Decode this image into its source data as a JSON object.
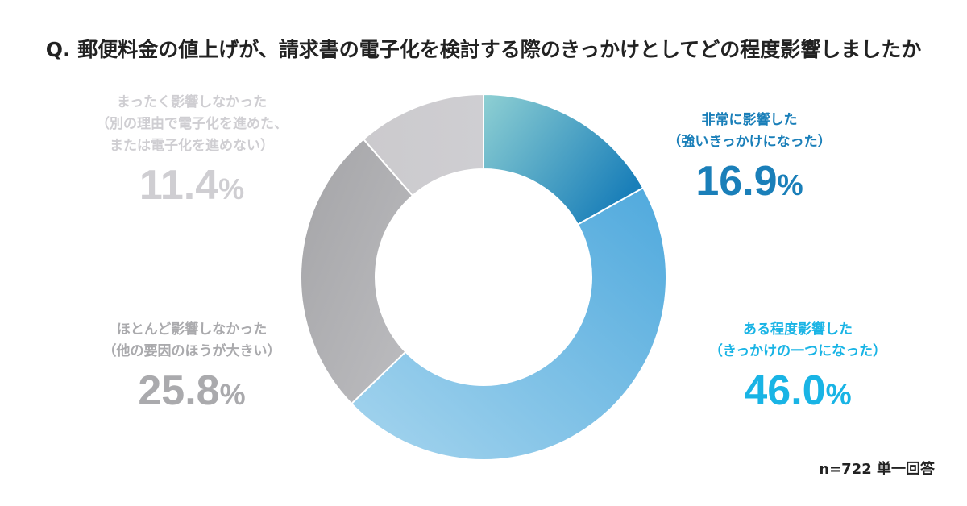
{
  "title": "Q. 郵便料金の値上げが、請求書の電子化を検討する際のきっかけとしてどの程度影響しましたか",
  "note": "n=722 単一回答",
  "chart_data": {
    "type": "pie",
    "style": "donut",
    "categories": [
      "非常に影響した（強いきっかけになった）",
      "ある程度影響した（きっかけの一つになった）",
      "ほとんど影響しなかった（他の要因のほうが大きい）",
      "まったく影響しなかった（別の理由で電子化を進めた、または電子化を進めない）"
    ],
    "values": [
      16.9,
      46.0,
      25.8,
      11.4
    ],
    "unit": "%",
    "colors": [
      "#1a7fb9",
      "#5cb3e0",
      "#a8a8ab",
      "#cdcccf"
    ]
  },
  "labels": {
    "strong": {
      "line1": "非常に影響した",
      "line2": "（強いきっかけになった）",
      "value": "16.9",
      "unit": "%"
    },
    "some": {
      "line1": "ある程度影響した",
      "line2": "（きっかけの一つになった）",
      "value": "46.0",
      "unit": "%"
    },
    "hardly": {
      "line1": "ほとんど影響しなかった",
      "line2": "（他の要因のほうが大きい）",
      "value": "25.8",
      "unit": "%"
    },
    "notatall": {
      "line1": "まったく影響しなかった",
      "line2": "（別の理由で電子化を進めた、",
      "line3": "または電子化を進めない）",
      "value": "11.4",
      "unit": "%"
    }
  }
}
